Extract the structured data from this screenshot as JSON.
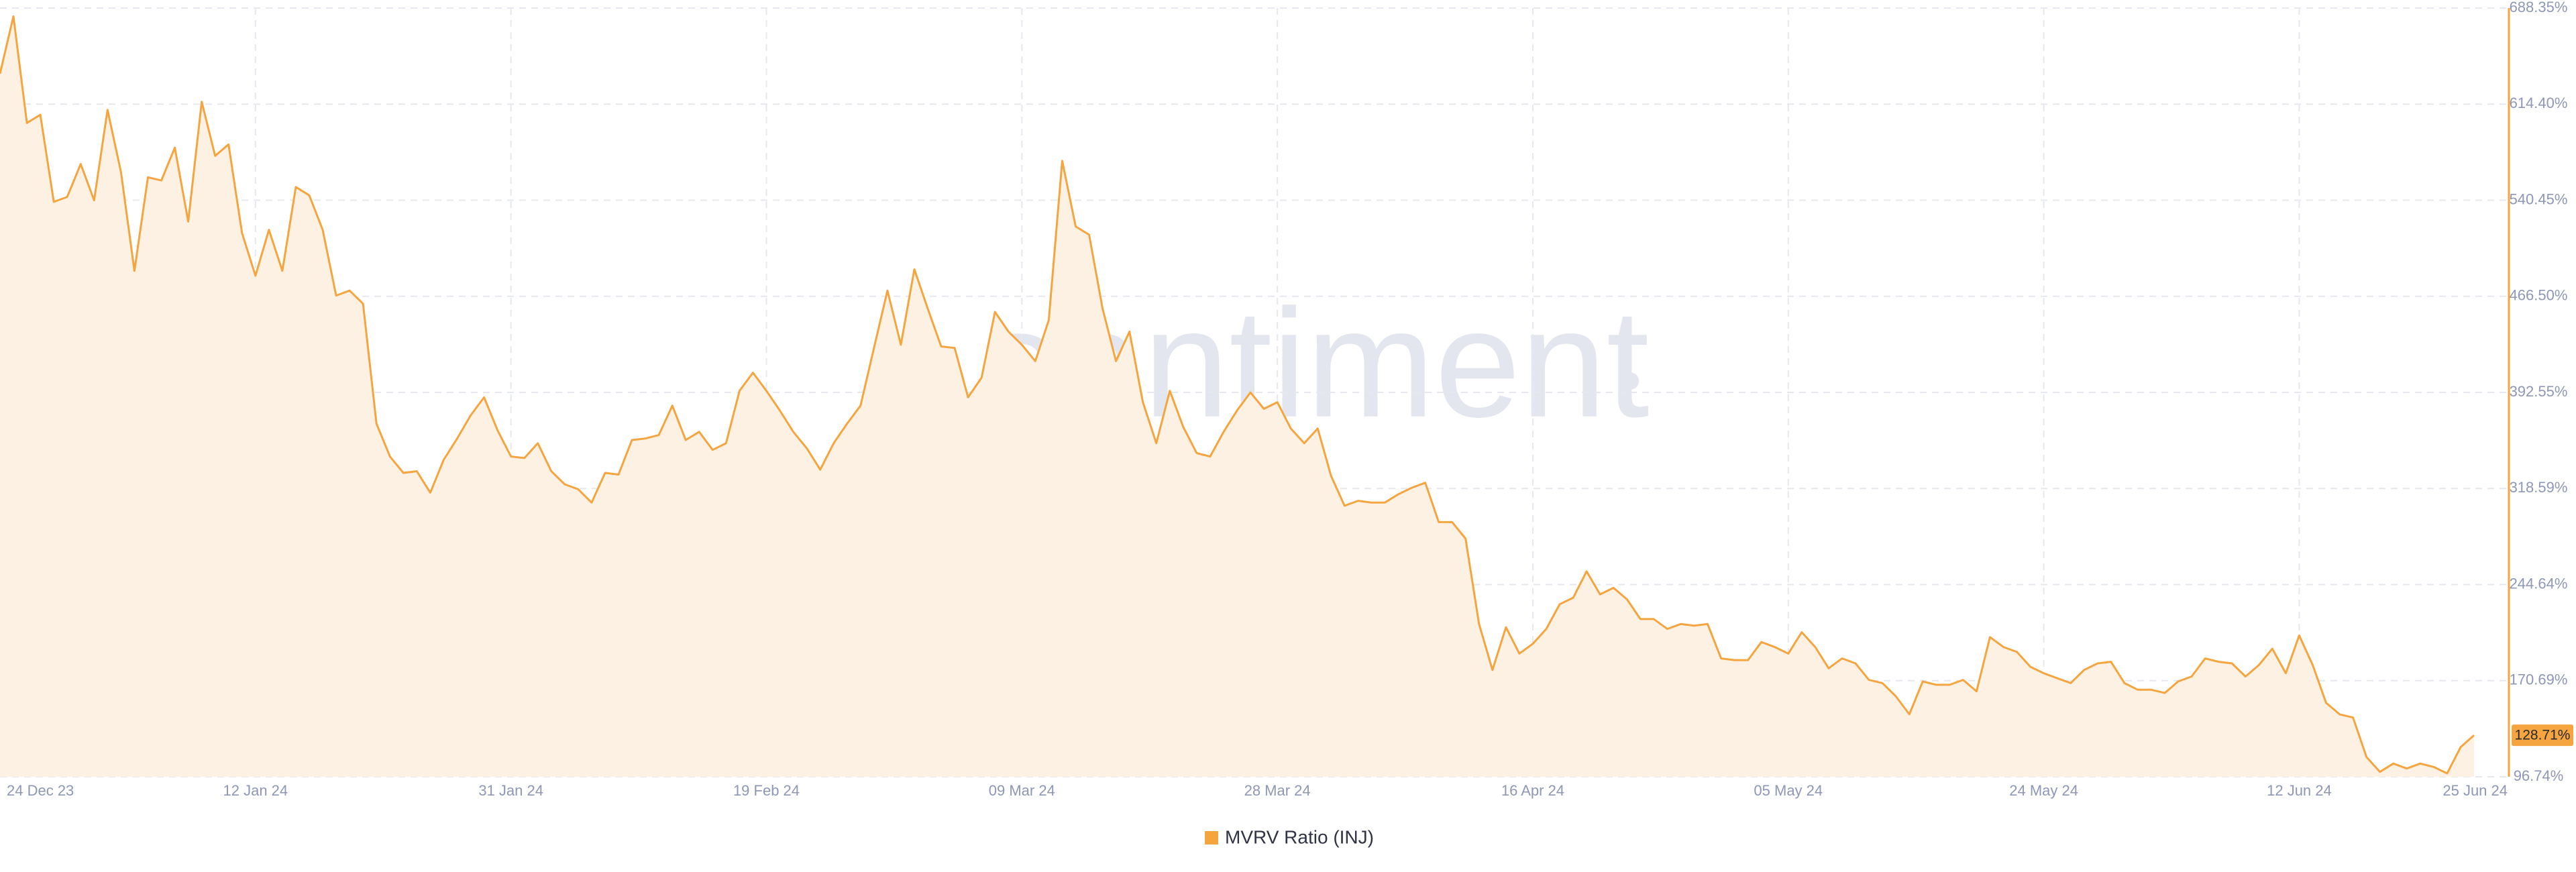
{
  "chart_data": {
    "type": "area",
    "watermark": "santiment",
    "categories": [
      "24 Dec 23",
      null,
      null,
      null,
      null,
      null,
      null,
      null,
      null,
      null,
      null,
      null,
      null,
      null,
      null,
      null,
      null,
      null,
      null,
      "12 Jan 24",
      null,
      null,
      null,
      null,
      null,
      null,
      null,
      null,
      null,
      null,
      null,
      null,
      null,
      null,
      null,
      null,
      null,
      null,
      "31 Jan 24",
      null,
      null,
      null,
      null,
      null,
      null,
      null,
      null,
      null,
      null,
      null,
      null,
      null,
      null,
      null,
      null,
      null,
      null,
      "19 Feb 24",
      null,
      null,
      null,
      null,
      null,
      null,
      null,
      null,
      null,
      null,
      null,
      null,
      null,
      null,
      null,
      null,
      null,
      null,
      "09 Mar 24",
      null,
      null,
      null,
      null,
      null,
      null,
      null,
      null,
      null,
      null,
      null,
      null,
      null,
      null,
      null,
      null,
      null,
      null,
      "28 Mar 24",
      null,
      null,
      null,
      null,
      null,
      null,
      null,
      null,
      null,
      null,
      null,
      null,
      null,
      null,
      null,
      null,
      null,
      null,
      "16 Apr 24",
      null,
      null,
      null,
      null,
      null,
      null,
      null,
      null,
      null,
      null,
      null,
      null,
      null,
      null,
      null,
      null,
      null,
      null,
      "05 May 24",
      null,
      null,
      null,
      null,
      null,
      null,
      null,
      null,
      null,
      null,
      null,
      null,
      null,
      null,
      null,
      null,
      null,
      null,
      "24 May 24",
      null,
      null,
      null,
      null,
      null,
      null,
      null,
      null,
      null,
      null,
      null,
      null,
      null,
      null,
      null,
      null,
      null,
      null,
      "12 Jun 24",
      null,
      null,
      null,
      null,
      null,
      null,
      null,
      null,
      null,
      null,
      null,
      null,
      "25 Jun 24"
    ],
    "series": [
      {
        "name": "MVRV Ratio (INJ)",
        "color": "#f5a540",
        "fill": "#fdf1e3",
        "values": [
          637.8,
          682.0,
          599.9,
          606.2,
          539.2,
          543.0,
          568.3,
          540.4,
          610.0,
          561.9,
          486.1,
          558.1,
          555.6,
          580.9,
          524.0,
          616.3,
          574.6,
          583.4,
          515.2,
          482.3,
          517.7,
          486.1,
          550.6,
          544.2,
          517.7,
          467.1,
          470.9,
          460.8,
          368.5,
          343.2,
          330.6,
          331.9,
          315.4,
          340.7,
          357.1,
          374.8,
          388.7,
          363.5,
          343.2,
          342.0,
          353.4,
          331.9,
          321.8,
          318.0,
          307.8,
          330.6,
          329.3,
          355.9,
          357.1,
          359.7,
          382.4,
          355.9,
          362.2,
          348.3,
          353.4,
          393.8,
          407.7,
          393.8,
          378.6,
          362.2,
          349.6,
          333.1,
          353.4,
          368.5,
          382.4,
          426.7,
          470.9,
          429.2,
          487.3,
          457.0,
          427.9,
          426.7,
          388.7,
          403.9,
          454.5,
          439.3,
          429.2,
          416.6,
          448.2,
          570.8,
          520.2,
          513.9,
          457.0,
          416.6,
          439.3,
          385.0,
          353.4,
          393.8,
          366.0,
          345.8,
          343.2,
          362.2,
          378.6,
          392.5,
          379.9,
          385.0,
          364.7,
          353.4,
          364.7,
          328.1,
          305.3,
          309.1,
          307.8,
          307.8,
          314.2,
          319.2,
          323.0,
          292.7,
          292.7,
          280.0,
          214.3,
          178.9,
          211.8,
          191.5,
          199.1,
          210.5,
          229.5,
          234.5,
          254.8,
          237.1,
          242.1,
          233.3,
          218.1,
          218.1,
          210.5,
          214.3,
          213.0,
          214.3,
          187.8,
          186.5,
          186.5,
          200.4,
          196.6,
          191.5,
          208.0,
          196.6,
          180.2,
          187.8,
          184.0,
          171.3,
          168.8,
          158.7,
          144.8,
          170.1,
          167.5,
          167.5,
          171.3,
          162.5,
          204.2,
          196.6,
          192.8,
          181.4,
          176.4,
          172.6,
          168.8,
          178.9,
          184.0,
          185.2,
          168.8,
          163.7,
          163.7,
          161.2,
          170.1,
          173.9,
          187.8,
          185.2,
          184.0,
          173.9,
          182.7,
          195.3,
          176.4,
          205.5,
          182.7,
          153.6,
          144.8,
          142.3,
          111.9,
          100.5,
          106.9,
          103.1,
          106.9,
          104.3,
          99.3,
          119.5,
          128.71
        ],
        "value_labels": [
          null,
          null,
          null,
          null,
          null,
          null,
          null,
          null,
          null,
          null,
          null,
          null,
          null,
          null,
          null,
          null,
          null,
          null,
          null,
          null,
          null,
          null,
          null,
          null,
          null,
          null,
          null,
          null,
          null,
          null,
          null,
          null,
          null,
          null,
          null,
          null,
          null,
          null,
          null,
          null,
          null,
          null,
          null,
          null,
          null,
          null,
          null,
          null,
          null,
          null,
          null,
          null,
          null,
          null,
          null,
          null,
          null,
          null,
          null,
          null,
          null,
          null,
          null,
          null,
          null,
          null,
          null,
          null,
          null,
          null,
          null,
          null,
          null,
          null,
          null,
          null,
          null,
          null,
          null,
          null,
          null,
          null,
          null,
          null,
          null,
          null,
          null,
          null,
          null,
          null,
          null,
          null,
          null,
          null,
          null,
          null,
          null,
          null,
          null,
          null,
          null,
          null,
          null,
          null,
          null,
          null,
          null,
          null,
          null,
          null,
          null,
          null,
          null,
          null,
          null,
          null,
          null,
          null,
          null,
          null,
          null,
          null,
          null,
          null,
          null,
          null,
          null,
          null,
          null,
          null,
          null,
          null,
          null,
          null,
          null,
          null,
          null,
          null,
          null,
          null,
          null,
          null,
          null,
          null,
          null,
          null,
          null,
          null,
          null,
          null,
          null,
          null,
          null,
          null,
          null,
          null,
          null,
          null,
          null,
          null,
          null,
          null,
          null,
          null,
          null,
          null,
          null,
          null,
          null,
          null,
          null,
          null,
          null,
          null,
          null,
          null,
          null,
          null,
          null,
          null,
          null,
          null,
          null,
          null,
          "128.71%"
        ]
      }
    ],
    "ylim": [
      96.74,
      688.35
    ],
    "yticks": [
      {
        "value": 96.74,
        "label": "96.74%"
      },
      {
        "value": 170.69,
        "label": "170.69%"
      },
      {
        "value": 244.64,
        "label": "244.64%"
      },
      {
        "value": 318.59,
        "label": "318.59%"
      },
      {
        "value": 392.55,
        "label": "392.55%"
      },
      {
        "value": 466.5,
        "label": "466.50%"
      },
      {
        "value": 540.45,
        "label": "540.45%"
      },
      {
        "value": 614.4,
        "label": "614.40%"
      },
      {
        "value": 688.35,
        "label": "688.35%"
      }
    ],
    "grid": true,
    "legend_position": "bottom"
  }
}
